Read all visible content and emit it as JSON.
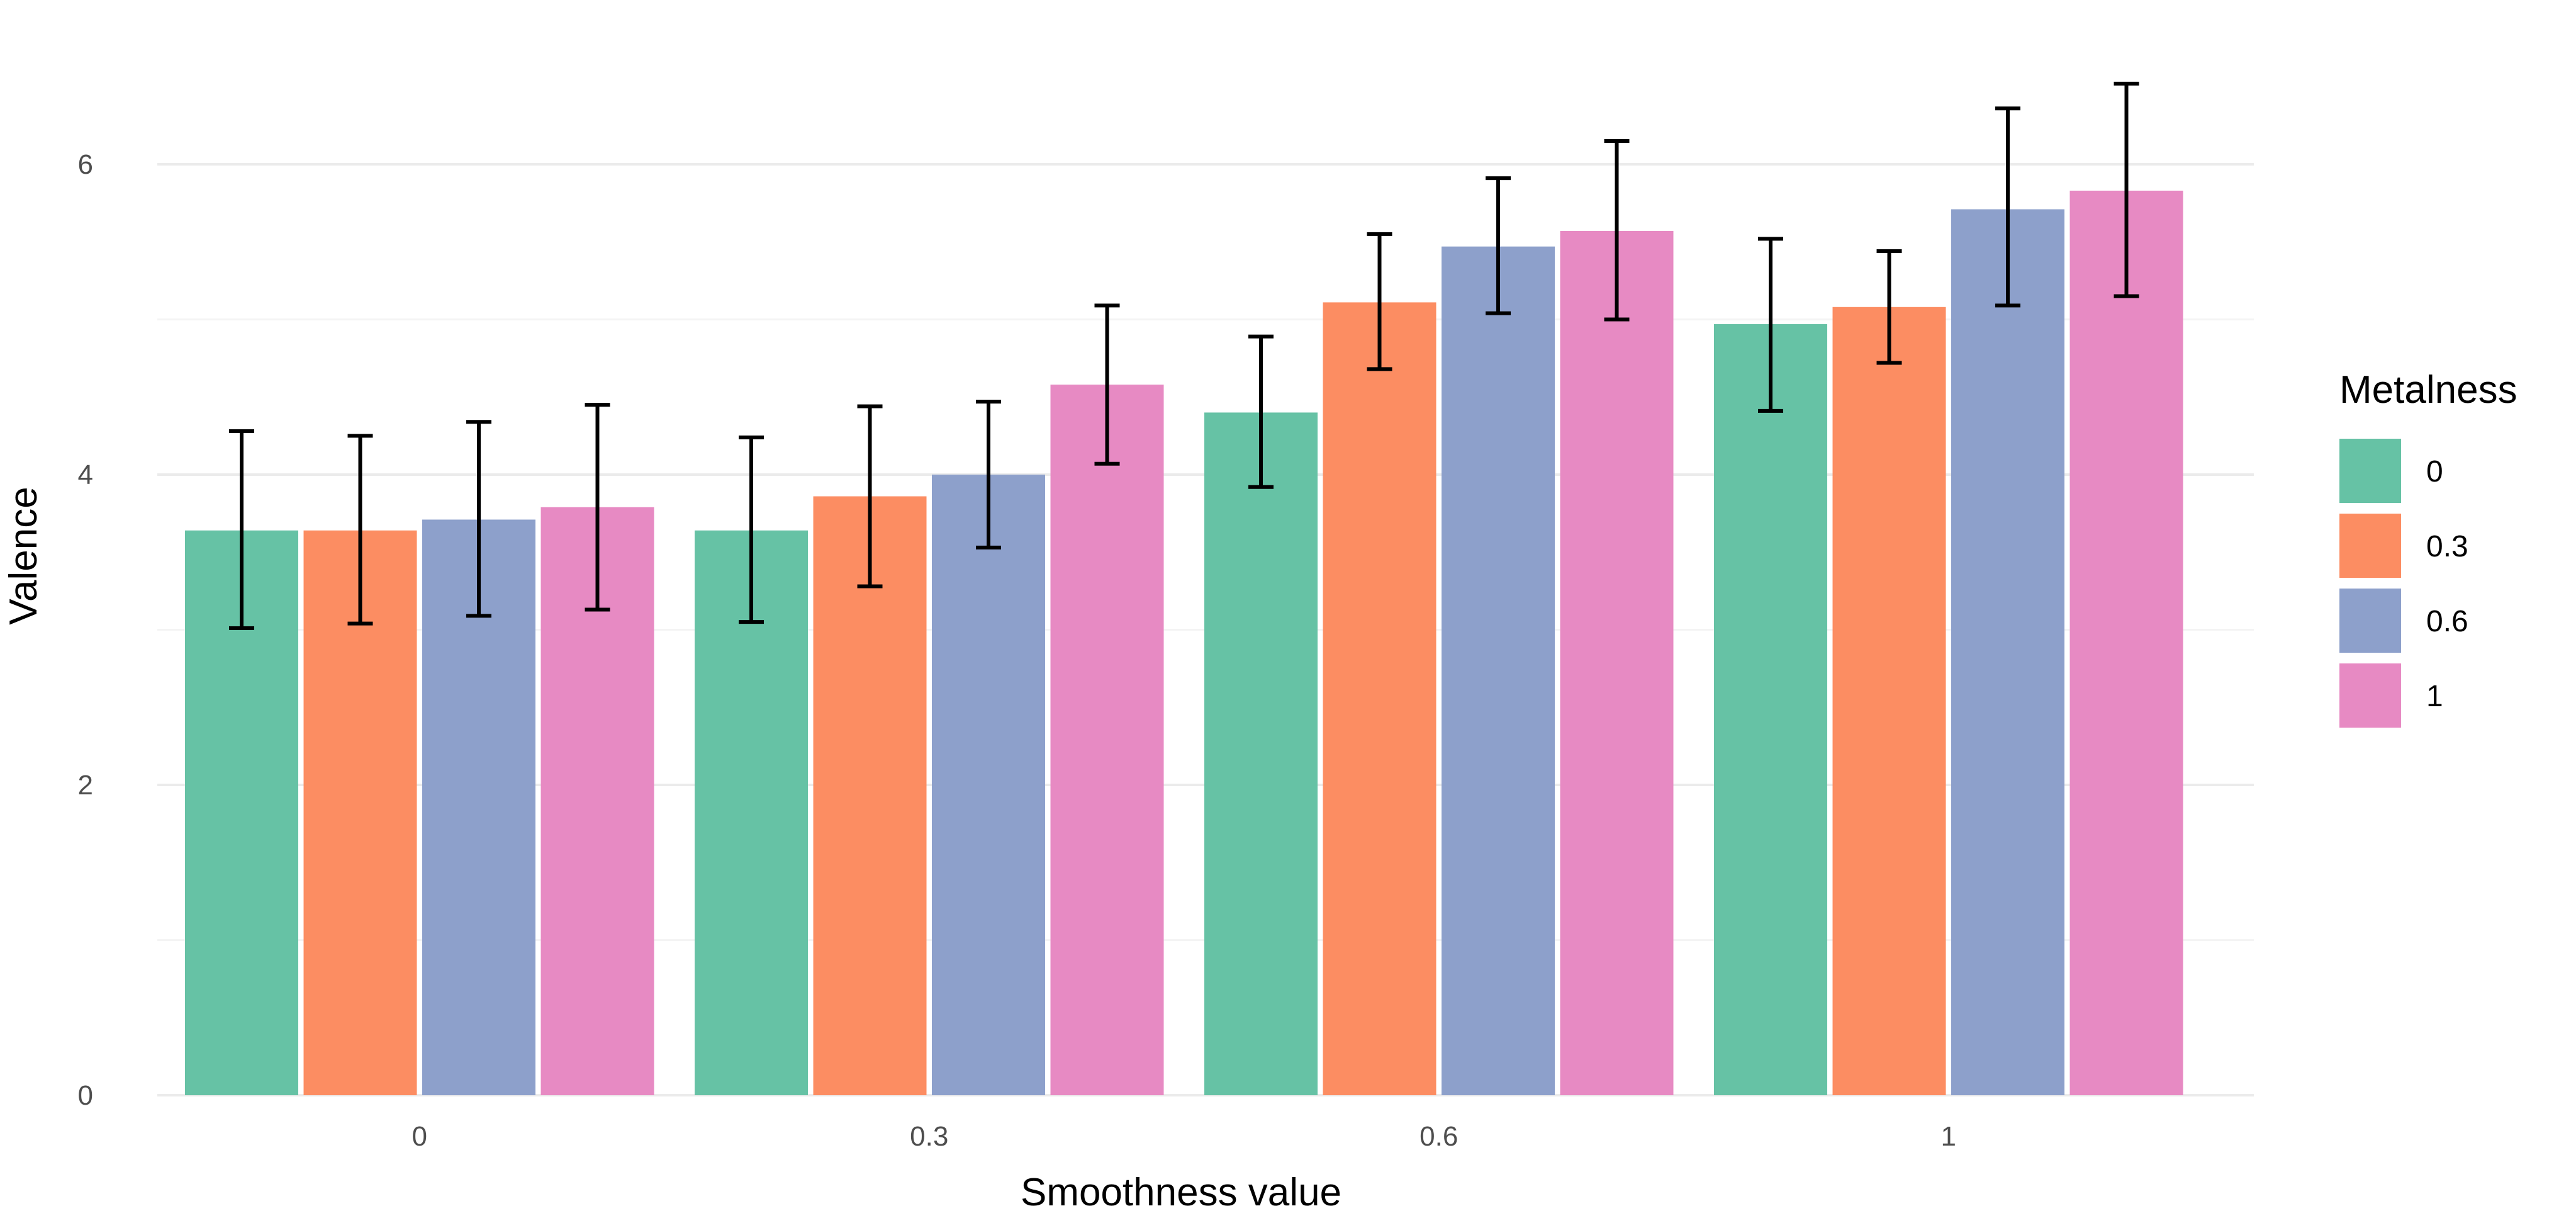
{
  "chart_data": {
    "type": "bar",
    "title": "",
    "xlabel": "Smoothness value",
    "ylabel": "Valence",
    "ylim": [
      0,
      6.6
    ],
    "yticks": [
      "0",
      "2",
      "4",
      "6"
    ],
    "categories": [
      "0",
      "0.3",
      "0.6",
      "1"
    ],
    "legend": {
      "title": "Metalness",
      "position": "right"
    },
    "grid": true,
    "series": [
      {
        "name": "0",
        "color": "#66c2a5",
        "values": [
          3.64,
          3.64,
          4.4,
          4.97
        ],
        "err_low": [
          3.01,
          3.05,
          3.92,
          4.41
        ],
        "err_high": [
          4.28,
          4.24,
          4.89,
          5.52
        ]
      },
      {
        "name": "0.3",
        "color": "#fc8d62",
        "values": [
          3.64,
          3.86,
          5.11,
          5.08
        ],
        "err_low": [
          3.04,
          3.28,
          4.68,
          4.72
        ],
        "err_high": [
          4.25,
          4.44,
          5.55,
          5.44
        ]
      },
      {
        "name": "0.6",
        "color": "#8da0cb",
        "values": [
          3.71,
          4.0,
          5.47,
          5.71
        ],
        "err_low": [
          3.09,
          3.53,
          5.04,
          5.09
        ],
        "err_high": [
          4.34,
          4.47,
          5.91,
          6.36
        ]
      },
      {
        "name": "1",
        "color": "#e78ac3",
        "values": [
          3.79,
          4.58,
          5.57,
          5.83
        ],
        "err_low": [
          3.13,
          4.07,
          5.0,
          5.15
        ],
        "err_high": [
          4.45,
          5.09,
          6.15,
          6.52
        ]
      }
    ]
  }
}
